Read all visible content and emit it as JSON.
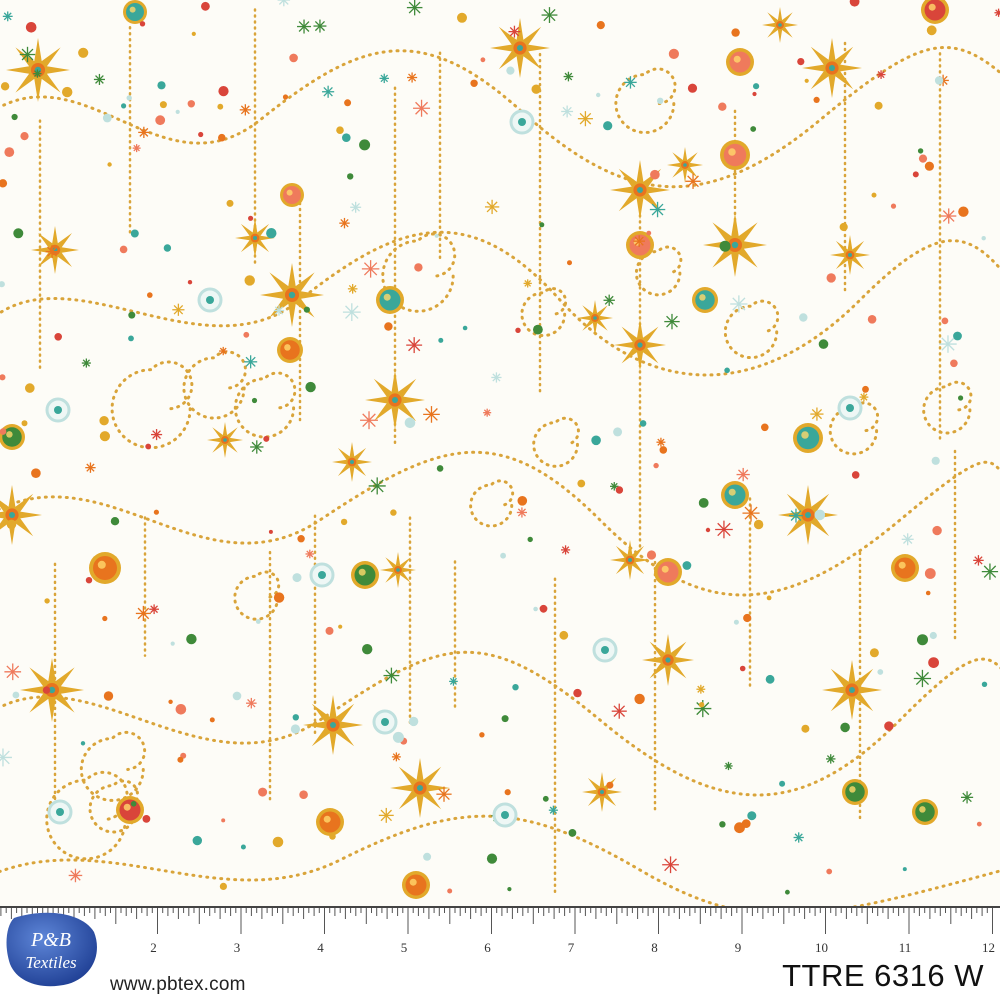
{
  "brand": {
    "logo_line1": "P&B",
    "logo_line2": "Textiles",
    "website": "www.pbtex.com"
  },
  "product": {
    "code": "TTRE 6316 W"
  },
  "ruler": {
    "labels": [
      "2",
      "3",
      "4",
      "5",
      "6",
      "7",
      "8",
      "9",
      "10",
      "11",
      "12"
    ]
  },
  "colors": {
    "background": "#fdfcf7",
    "gold": "#e2a92b",
    "dot_gold": "#d9a43a",
    "orange": "#e8741e",
    "red": "#d9453a",
    "teal": "#3aa79a",
    "green": "#3f8a3a",
    "light_blue": "#bfe0de",
    "coral": "#ef7a5c",
    "logo_blue": "#2f58b3"
  },
  "pattern": {
    "motifs": [
      "star-burst-icon",
      "jewel-ornament-icon",
      "beaded-swirl",
      "sparkle-icon"
    ]
  }
}
